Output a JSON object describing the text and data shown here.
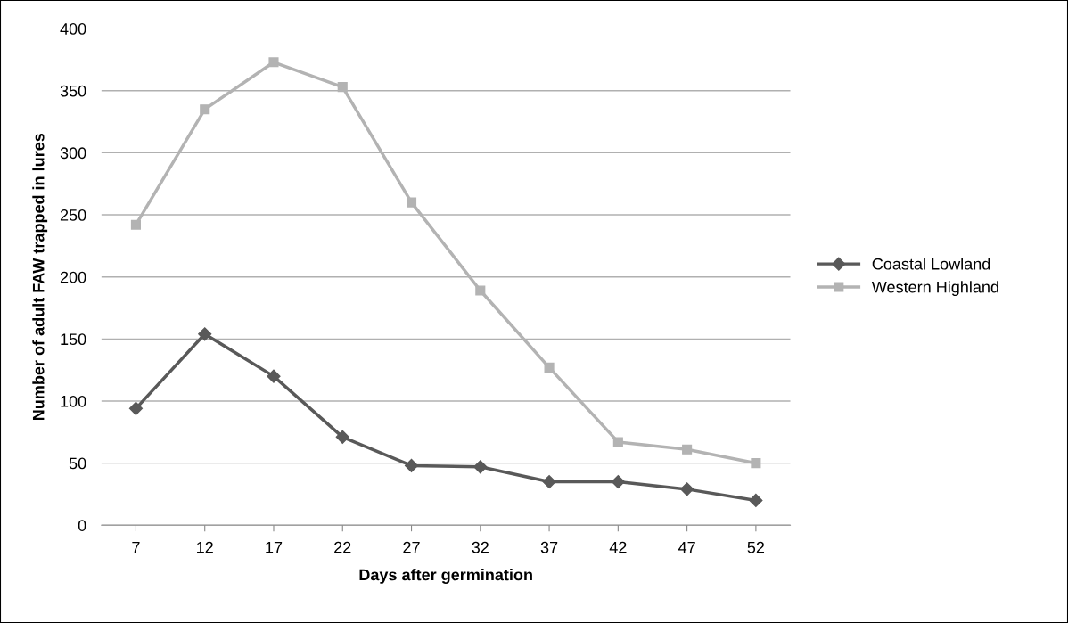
{
  "chart_data": {
    "type": "line",
    "xlabel": "Days after germination",
    "ylabel": "Number of adult FAW trapped in lures",
    "categories": [
      "7",
      "12",
      "17",
      "22",
      "27",
      "32",
      "37",
      "42",
      "47",
      "52"
    ],
    "series": [
      {
        "name": "Coastal Lowland",
        "color": "#595959",
        "marker": "diamond",
        "values": [
          94,
          154,
          120,
          71,
          48,
          47,
          35,
          35,
          29,
          20
        ]
      },
      {
        "name": "Western Highland",
        "color": "#b3b3b3",
        "marker": "square",
        "values": [
          242,
          335,
          373,
          353,
          260,
          189,
          127,
          67,
          61,
          50
        ]
      }
    ],
    "ylim": [
      0,
      400
    ],
    "yticks": [
      0,
      50,
      100,
      150,
      200,
      250,
      300,
      350,
      400
    ],
    "grid": "y",
    "legend": "right",
    "line_style": "solid"
  }
}
